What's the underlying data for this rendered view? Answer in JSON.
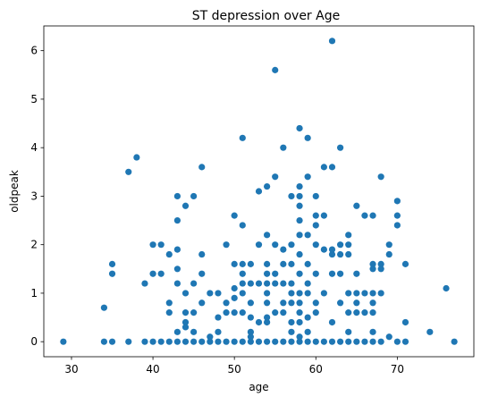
{
  "chart_data": {
    "type": "scatter",
    "title": "ST depression over Age",
    "xlabel": "age",
    "ylabel": "oldpeak",
    "xlim": [
      26.6,
      79.4
    ],
    "ylim": [
      -0.31,
      6.51
    ],
    "xticks": [
      30,
      40,
      50,
      60,
      70
    ],
    "yticks": [
      0,
      1,
      2,
      3,
      4,
      5,
      6
    ],
    "grid": false,
    "legend": "none",
    "marker_color": "#1f77b4",
    "points": [
      [
        29,
        0
      ],
      [
        34,
        0
      ],
      [
        34,
        0.7
      ],
      [
        35,
        0
      ],
      [
        35,
        1.4
      ],
      [
        35,
        1.6
      ],
      [
        37,
        0
      ],
      [
        37,
        3.5
      ],
      [
        38,
        3.8
      ],
      [
        39,
        0
      ],
      [
        39,
        1.2
      ],
      [
        40,
        0
      ],
      [
        40,
        1.4
      ],
      [
        40,
        2.0
      ],
      [
        41,
        0
      ],
      [
        41,
        1.4
      ],
      [
        41,
        2.0
      ],
      [
        42,
        0
      ],
      [
        42,
        0.6
      ],
      [
        42,
        0.8
      ],
      [
        42,
        1.8
      ],
      [
        43,
        0
      ],
      [
        43,
        0.2
      ],
      [
        43,
        1.2
      ],
      [
        43,
        1.5
      ],
      [
        43,
        1.9
      ],
      [
        43,
        2.5
      ],
      [
        43,
        3.0
      ],
      [
        44,
        0
      ],
      [
        44,
        0.3
      ],
      [
        44,
        0.4
      ],
      [
        44,
        0.6
      ],
      [
        44,
        1.0
      ],
      [
        44,
        2.8
      ],
      [
        45,
        0
      ],
      [
        45,
        0.2
      ],
      [
        45,
        0.6
      ],
      [
        45,
        1.2
      ],
      [
        45,
        3.0
      ],
      [
        46,
        0
      ],
      [
        46,
        0.8
      ],
      [
        46,
        1.4
      ],
      [
        46,
        1.8
      ],
      [
        46,
        3.6
      ],
      [
        47,
        0
      ],
      [
        47,
        0.1
      ],
      [
        47,
        1.0
      ],
      [
        48,
        0
      ],
      [
        48,
        0.2
      ],
      [
        48,
        0.5
      ],
      [
        48,
        1.0
      ],
      [
        49,
        0
      ],
      [
        49,
        0.6
      ],
      [
        49,
        0.8
      ],
      [
        49,
        2.0
      ],
      [
        50,
        0
      ],
      [
        50,
        0.6
      ],
      [
        50,
        0.9
      ],
      [
        50,
        1.1
      ],
      [
        50,
        1.6
      ],
      [
        50,
        2.6
      ],
      [
        51,
        0
      ],
      [
        51,
        0.6
      ],
      [
        51,
        1.0
      ],
      [
        51,
        1.2
      ],
      [
        51,
        1.4
      ],
      [
        51,
        1.6
      ],
      [
        51,
        2.4
      ],
      [
        51,
        4.2
      ],
      [
        52,
        0
      ],
      [
        52,
        0.1
      ],
      [
        52,
        0.2
      ],
      [
        52,
        0.5
      ],
      [
        52,
        0.8
      ],
      [
        52,
        1.2
      ],
      [
        52,
        1.6
      ],
      [
        53,
        0
      ],
      [
        53,
        0.4
      ],
      [
        53,
        1.2
      ],
      [
        53,
        2.0
      ],
      [
        53,
        3.1
      ],
      [
        54,
        0
      ],
      [
        54,
        0.4
      ],
      [
        54,
        0.5
      ],
      [
        54,
        0.8
      ],
      [
        54,
        1.0
      ],
      [
        54,
        1.2
      ],
      [
        54,
        1.4
      ],
      [
        54,
        1.6
      ],
      [
        54,
        2.2
      ],
      [
        54,
        3.2
      ],
      [
        55,
        0
      ],
      [
        55,
        0.6
      ],
      [
        55,
        1.2
      ],
      [
        55,
        1.4
      ],
      [
        55,
        2.0
      ],
      [
        55,
        3.4
      ],
      [
        55,
        5.6
      ],
      [
        56,
        0
      ],
      [
        56,
        0.6
      ],
      [
        56,
        0.8
      ],
      [
        56,
        1.2
      ],
      [
        56,
        1.6
      ],
      [
        56,
        1.9
      ],
      [
        56,
        4.0
      ],
      [
        57,
        0
      ],
      [
        57,
        0.2
      ],
      [
        57,
        0.4
      ],
      [
        57,
        0.8
      ],
      [
        57,
        1.0
      ],
      [
        57,
        1.2
      ],
      [
        57,
        1.6
      ],
      [
        57,
        2.0
      ],
      [
        57,
        3.0
      ],
      [
        58,
        0
      ],
      [
        58,
        0.1
      ],
      [
        58,
        0.4
      ],
      [
        58,
        0.6
      ],
      [
        58,
        0.8
      ],
      [
        58,
        1.0
      ],
      [
        58,
        1.4
      ],
      [
        58,
        1.8
      ],
      [
        58,
        2.2
      ],
      [
        58,
        2.5
      ],
      [
        58,
        2.8
      ],
      [
        58,
        3.0
      ],
      [
        58,
        3.2
      ],
      [
        58,
        4.4
      ],
      [
        59,
        0
      ],
      [
        59,
        0.2
      ],
      [
        59,
        0.5
      ],
      [
        59,
        1.0
      ],
      [
        59,
        1.2
      ],
      [
        59,
        1.6
      ],
      [
        59,
        2.2
      ],
      [
        59,
        3.4
      ],
      [
        59,
        4.2
      ],
      [
        60,
        0
      ],
      [
        60,
        0.6
      ],
      [
        60,
        0.8
      ],
      [
        60,
        1.4
      ],
      [
        60,
        2.0
      ],
      [
        60,
        2.4
      ],
      [
        60,
        2.6
      ],
      [
        60,
        3.0
      ],
      [
        61,
        0
      ],
      [
        61,
        1.0
      ],
      [
        61,
        1.9
      ],
      [
        61,
        2.6
      ],
      [
        61,
        3.6
      ],
      [
        62,
        0
      ],
      [
        62,
        0.4
      ],
      [
        62,
        1.4
      ],
      [
        62,
        1.8
      ],
      [
        62,
        1.9
      ],
      [
        62,
        3.6
      ],
      [
        62,
        6.2
      ],
      [
        63,
        0
      ],
      [
        63,
        0.8
      ],
      [
        63,
        1.4
      ],
      [
        63,
        1.8
      ],
      [
        63,
        2.0
      ],
      [
        63,
        4.0
      ],
      [
        64,
        0
      ],
      [
        64,
        0.2
      ],
      [
        64,
        0.6
      ],
      [
        64,
        1.0
      ],
      [
        64,
        1.8
      ],
      [
        64,
        2.0
      ],
      [
        64,
        2.2
      ],
      [
        65,
        0
      ],
      [
        65,
        0.6
      ],
      [
        65,
        0.8
      ],
      [
        65,
        1.0
      ],
      [
        65,
        1.4
      ],
      [
        65,
        2.8
      ],
      [
        66,
        0
      ],
      [
        66,
        0.6
      ],
      [
        66,
        1.0
      ],
      [
        66,
        2.6
      ],
      [
        67,
        0
      ],
      [
        67,
        0.2
      ],
      [
        67,
        0.6
      ],
      [
        67,
        0.8
      ],
      [
        67,
        1.0
      ],
      [
        67,
        1.5
      ],
      [
        67,
        1.6
      ],
      [
        67,
        2.6
      ],
      [
        68,
        0
      ],
      [
        68,
        1.0
      ],
      [
        68,
        1.5
      ],
      [
        68,
        1.6
      ],
      [
        68,
        3.4
      ],
      [
        69,
        0.1
      ],
      [
        69,
        1.8
      ],
      [
        69,
        2.0
      ],
      [
        70,
        0
      ],
      [
        70,
        2.4
      ],
      [
        70,
        2.6
      ],
      [
        70,
        2.9
      ],
      [
        71,
        0
      ],
      [
        71,
        0.4
      ],
      [
        71,
        1.6
      ],
      [
        74,
        0.2
      ],
      [
        76,
        1.1
      ],
      [
        77,
        0
      ]
    ]
  }
}
